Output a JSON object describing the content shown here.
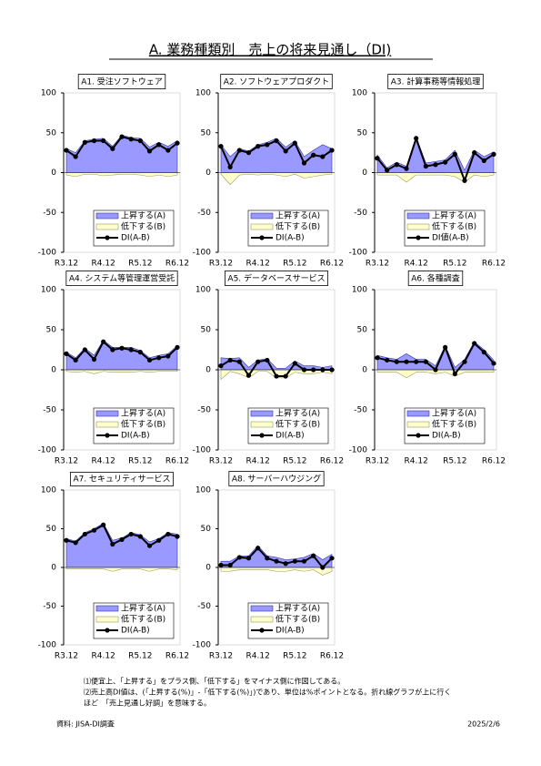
{
  "title": "A. 業務種類別　売上の将来見通し（DI)",
  "chart_data": [
    {
      "type": "area-line",
      "title": "A1.  受注ソフトウェア",
      "categories": [
        "R3.12",
        null,
        null,
        null,
        "R4.12",
        null,
        null,
        null,
        "R5.12",
        null,
        null,
        null,
        "R6.12"
      ],
      "ylim": [
        -100,
        100
      ],
      "yticks": [
        100,
        50,
        0,
        -50,
        -100
      ],
      "series": [
        {
          "name": "上昇する(A)",
          "color": "#9999ff",
          "values": [
            30,
            25,
            40,
            42,
            43,
            33,
            47,
            44,
            43,
            32,
            38,
            33,
            40
          ]
        },
        {
          "name": "低下する(B)",
          "color": "#ffffcc",
          "values": [
            -3,
            -5,
            -2,
            -2,
            -4,
            -3,
            -2,
            -2,
            -3,
            -5,
            -3,
            -5,
            -3
          ]
        },
        {
          "name": "DI(A-B)",
          "color": "#000000",
          "values": [
            28,
            20,
            38,
            40,
            40,
            30,
            45,
            42,
            40,
            27,
            35,
            28,
            37
          ]
        }
      ]
    },
    {
      "type": "area-line",
      "title": "A2. ソフトウェアプロダクト",
      "categories": [
        "R3.12",
        null,
        null,
        null,
        "R4.12",
        null,
        null,
        null,
        "R5.12",
        null,
        null,
        null,
        "R6.12"
      ],
      "ylim": [
        -100,
        100
      ],
      "yticks": [
        100,
        50,
        0,
        -50,
        -100
      ],
      "series": [
        {
          "name": "上昇する(A)",
          "color": "#9999ff",
          "values": [
            35,
            20,
            30,
            27,
            35,
            38,
            43,
            32,
            40,
            20,
            28,
            35,
            30
          ]
        },
        {
          "name": "低下する(B)",
          "color": "#ffffcc",
          "values": [
            -2,
            -15,
            -3,
            -2,
            -3,
            -2,
            -3,
            -5,
            -2,
            -7,
            -5,
            -3,
            -2
          ]
        },
        {
          "name": "DI(A-B)",
          "color": "#000000",
          "values": [
            33,
            7,
            28,
            25,
            33,
            35,
            40,
            27,
            37,
            12,
            22,
            20,
            28
          ]
        }
      ]
    },
    {
      "type": "area-line",
      "title": "A3. 計算事務等情報処理",
      "categories": [
        "R3.12",
        null,
        null,
        null,
        "R4.12",
        null,
        null,
        null,
        "R5.12",
        null,
        null,
        null,
        "R6.12"
      ],
      "ylim": [
        -100,
        100
      ],
      "yticks": [
        100,
        50,
        0,
        -50,
        -100
      ],
      "series": [
        {
          "name": "上昇する(A)",
          "color": "#9999ff",
          "values": [
            22,
            6,
            13,
            8,
            45,
            12,
            14,
            16,
            28,
            3,
            28,
            20,
            26
          ]
        },
        {
          "name": "低下する(B)",
          "color": "#ffffcc",
          "values": [
            -3,
            -3,
            -3,
            -12,
            -3,
            -3,
            -3,
            -3,
            -5,
            -12,
            -3,
            -5,
            -3
          ]
        },
        {
          "name": "DI値(A-B)",
          "color": "#000000",
          "values": [
            18,
            3,
            10,
            5,
            43,
            8,
            10,
            13,
            23,
            -10,
            25,
            15,
            23
          ]
        }
      ]
    },
    {
      "type": "area-line",
      "title": "A4. システム等管理運営受託",
      "categories": [
        "R3.12",
        null,
        null,
        null,
        "R4.12",
        null,
        null,
        null,
        "R5.12",
        null,
        null,
        null,
        "R6.12"
      ],
      "ylim": [
        -100,
        100
      ],
      "yticks": [
        100,
        50,
        0,
        -50,
        -100
      ],
      "series": [
        {
          "name": "上昇する(A)",
          "color": "#9999ff",
          "values": [
            22,
            15,
            27,
            18,
            37,
            28,
            28,
            28,
            24,
            15,
            18,
            20,
            30
          ]
        },
        {
          "name": "低下する(B)",
          "color": "#ffffcc",
          "values": [
            -2,
            -3,
            -2,
            -5,
            -2,
            -3,
            -3,
            -3,
            -2,
            -3,
            -2,
            -2,
            -2
          ]
        },
        {
          "name": "DI(A-B)",
          "color": "#000000",
          "values": [
            20,
            12,
            25,
            13,
            35,
            25,
            27,
            25,
            22,
            12,
            15,
            17,
            28
          ]
        }
      ]
    },
    {
      "type": "area-line",
      "title": "A5. データベースサービス",
      "categories": [
        "R3.12",
        null,
        null,
        null,
        "R4.12",
        null,
        null,
        null,
        "R5.12",
        null,
        null,
        null,
        "R6.12"
      ],
      "ylim": [
        -100,
        100
      ],
      "yticks": [
        100,
        50,
        0,
        -50,
        -100
      ],
      "series": [
        {
          "name": "上昇する(A)",
          "color": "#9999ff",
          "values": [
            15,
            14,
            15,
            3,
            12,
            14,
            2,
            2,
            11,
            5,
            5,
            3,
            5
          ]
        },
        {
          "name": "低下する(B)",
          "color": "#ffffcc",
          "values": [
            -12,
            -2,
            -5,
            -10,
            -2,
            -2,
            -10,
            -10,
            -3,
            -5,
            -5,
            -3,
            -5
          ]
        },
        {
          "name": "DI(A-B)",
          "color": "#000000",
          "values": [
            5,
            12,
            10,
            -7,
            10,
            12,
            -8,
            -8,
            8,
            0,
            0,
            0,
            0
          ]
        }
      ]
    },
    {
      "type": "area-line",
      "title": "A6. 各種調査",
      "categories": [
        "R3.12",
        null,
        null,
        null,
        "R4.12",
        null,
        null,
        null,
        "R5.12",
        null,
        null,
        null,
        "R6.12"
      ],
      "ylim": [
        -100,
        100
      ],
      "yticks": [
        100,
        50,
        0,
        -50,
        -100
      ],
      "series": [
        {
          "name": "上昇する(A)",
          "color": "#9999ff",
          "values": [
            18,
            15,
            13,
            20,
            13,
            13,
            5,
            30,
            3,
            13,
            35,
            25,
            12
          ]
        },
        {
          "name": "低下する(B)",
          "color": "#ffffcc",
          "values": [
            -3,
            -3,
            -3,
            -10,
            -3,
            -3,
            -5,
            -3,
            -8,
            -3,
            -3,
            -3,
            -3
          ]
        },
        {
          "name": "DI(A-B)",
          "color": "#000000",
          "values": [
            15,
            12,
            10,
            10,
            10,
            10,
            0,
            28,
            -5,
            10,
            33,
            22,
            8
          ]
        }
      ]
    },
    {
      "type": "area-line",
      "title": "A7. セキュリティサービス",
      "categories": [
        "R3.12",
        null,
        null,
        null,
        "R4.12",
        null,
        null,
        null,
        "R5.12",
        null,
        null,
        null,
        "R6.12"
      ],
      "ylim": [
        -100,
        100
      ],
      "yticks": [
        100,
        50,
        0,
        -50,
        -100
      ],
      "series": [
        {
          "name": "上昇する(A)",
          "color": "#9999ff",
          "values": [
            37,
            34,
            45,
            50,
            57,
            35,
            38,
            45,
            42,
            33,
            37,
            45,
            43
          ]
        },
        {
          "name": "低下する(B)",
          "color": "#ffffcc",
          "values": [
            -2,
            -2,
            -2,
            -2,
            -2,
            -5,
            -2,
            -2,
            -2,
            -5,
            -2,
            -2,
            -3
          ]
        },
        {
          "name": "DI(A-B)",
          "color": "#000000",
          "values": [
            35,
            32,
            43,
            48,
            55,
            30,
            36,
            43,
            40,
            28,
            35,
            43,
            40
          ]
        }
      ]
    },
    {
      "type": "area-line",
      "title": "A8. サーバーハウジング",
      "categories": [
        "R3.12",
        null,
        null,
        null,
        "R4.12",
        null,
        null,
        null,
        "R5.12",
        null,
        null,
        null,
        "R6.12"
      ],
      "ylim": [
        -100,
        100
      ],
      "yticks": [
        100,
        50,
        0,
        -50,
        -100
      ],
      "series": [
        {
          "name": "上昇する(A)",
          "color": "#9999ff",
          "values": [
            8,
            8,
            15,
            15,
            28,
            15,
            13,
            10,
            11,
            13,
            18,
            10,
            17
          ]
        },
        {
          "name": "低下する(B)",
          "color": "#ffffcc",
          "values": [
            -5,
            -5,
            -3,
            -3,
            -3,
            -3,
            -5,
            -5,
            -3,
            -5,
            -3,
            -10,
            -5
          ]
        },
        {
          "name": "DI(A-B)",
          "color": "#000000",
          "values": [
            3,
            3,
            13,
            12,
            25,
            12,
            8,
            5,
            8,
            8,
            15,
            0,
            12
          ]
        }
      ]
    }
  ],
  "notes": [
    "⑴便宜上、「上昇する」をプラス側、「低下する」をマイナス側に作図してある。",
    "⑵売上高DI値は、(「上昇する(%)」-「低下する(%)」)であり、単位は%ポイントとなる。折れ線グラフが上に行く",
    "ほど　「売上見通し好調」を意味する。"
  ],
  "source": "資料:  JISA-DI調査",
  "date": "2025/2/6"
}
